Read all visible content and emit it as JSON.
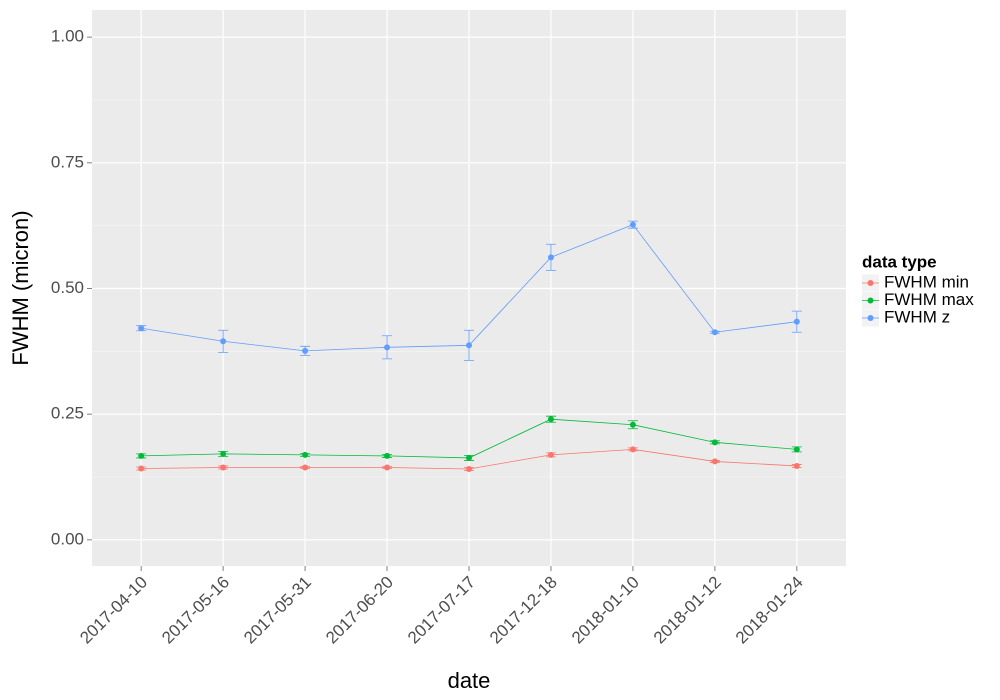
{
  "chart_data": {
    "type": "line",
    "x_label": "date",
    "y_label": "FWHM (micron)",
    "legend_title": "data type",
    "categories": [
      "2017-04-10",
      "2017-05-16",
      "2017-05-31",
      "2017-06-20",
      "2017-07-17",
      "2017-12-18",
      "2018-01-10",
      "2018-01-12",
      "2018-01-24"
    ],
    "series": [
      {
        "name": "FWHM min",
        "color": "#F8766D",
        "values": [
          0.142,
          0.144,
          0.144,
          0.144,
          0.141,
          0.169,
          0.18,
          0.156,
          0.147
        ],
        "errors": [
          0.003,
          0.003,
          0.002,
          0.002,
          0.003,
          0.004,
          0.003,
          0.002,
          0.003
        ]
      },
      {
        "name": "FWHM max",
        "color": "#00BA38",
        "values": [
          0.167,
          0.171,
          0.169,
          0.167,
          0.163,
          0.24,
          0.229,
          0.194,
          0.18
        ],
        "errors": [
          0.004,
          0.005,
          0.003,
          0.003,
          0.005,
          0.006,
          0.008,
          0.003,
          0.005
        ]
      },
      {
        "name": "FWHM z",
        "color": "#619CFF",
        "values": [
          0.421,
          0.395,
          0.376,
          0.383,
          0.387,
          0.562,
          0.627,
          0.413,
          0.434
        ],
        "errors": [
          0.005,
          0.022,
          0.009,
          0.023,
          0.03,
          0.026,
          0.007,
          0.002,
          0.021
        ]
      }
    ],
    "ylim": [
      -0.052,
      1.054
    ],
    "yticks": [
      {
        "value": 0,
        "label": "0.00"
      },
      {
        "value": 0.25,
        "label": "0.25"
      },
      {
        "value": 0.5,
        "label": "0.50"
      },
      {
        "value": 0.75,
        "label": "0.75"
      },
      {
        "value": 1,
        "label": "1.00"
      }
    ],
    "grid": true,
    "legend": "right"
  }
}
